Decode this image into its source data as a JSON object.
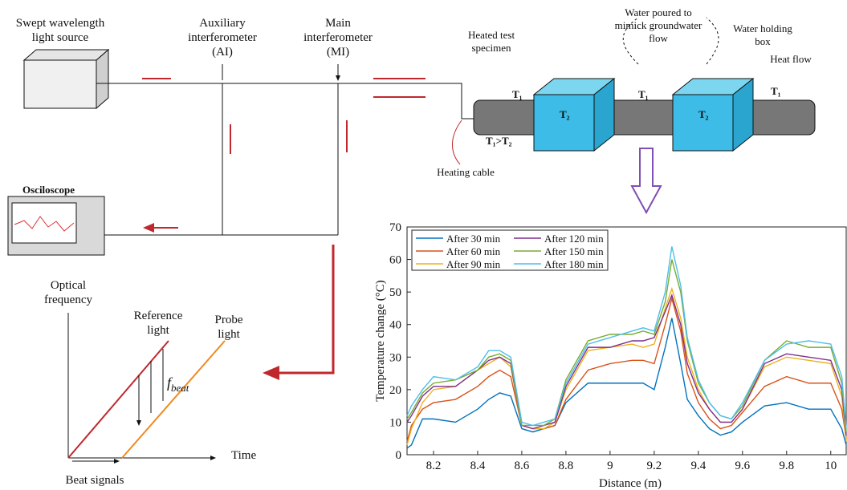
{
  "diagram": {
    "source": [
      "Swept wavelength",
      "light source"
    ],
    "ai": [
      "Auxiliary",
      "interferometer",
      "(AI)"
    ],
    "mi": [
      "Main",
      "interferometer",
      "(MI)"
    ],
    "specimen": [
      "Heated test",
      "specimen"
    ],
    "water": [
      "Water poured to",
      "mimick groundwater",
      "flow"
    ],
    "box": [
      "Water holding",
      "box"
    ],
    "heat_flow": "Heat flow",
    "heating_cable": "Heating cable",
    "t1": "T₁",
    "t2": "T₂",
    "t1_gt_t2": "T₁>T₂",
    "oscilloscope": "Osciloscope",
    "optical": [
      "Optical",
      "frequency"
    ],
    "reference": [
      "Reference",
      "light"
    ],
    "probe": [
      "Probe",
      "light"
    ],
    "fbeat": {
      "symbol": "f",
      "subscript": "beat"
    },
    "time": "Time",
    "beat_signals": "Beat signals"
  },
  "chart_data": {
    "type": "line",
    "x_label": "Distance (m)",
    "y_label": "Temperature change (°C)",
    "x": [
      8.08,
      8.1,
      8.15,
      8.2,
      8.3,
      8.4,
      8.45,
      8.5,
      8.55,
      8.6,
      8.65,
      8.7,
      8.75,
      8.8,
      8.9,
      9.0,
      9.1,
      9.15,
      9.2,
      9.25,
      9.28,
      9.32,
      9.35,
      9.4,
      9.45,
      9.5,
      9.55,
      9.6,
      9.7,
      9.8,
      9.9,
      10.0,
      10.05,
      10.07
    ],
    "series": [
      {
        "name": "After 30 min",
        "color": "#0072bd",
        "values": [
          2,
          3,
          11,
          11,
          10,
          14,
          17,
          19,
          18,
          8,
          7,
          8,
          9,
          16,
          22,
          22,
          22,
          22,
          20,
          33,
          42,
          28,
          17,
          12,
          8,
          6,
          7,
          10,
          15,
          16,
          14,
          14,
          8,
          3
        ]
      },
      {
        "name": "After 60 min",
        "color": "#d95319",
        "values": [
          4,
          9,
          14,
          16,
          17,
          21,
          24,
          26,
          24,
          9,
          8,
          8,
          9,
          17,
          26,
          28,
          29,
          29,
          28,
          40,
          48,
          38,
          25,
          16,
          11,
          8,
          9,
          13,
          21,
          24,
          22,
          22,
          14,
          5
        ]
      },
      {
        "name": "After 90 min",
        "color": "#edb120",
        "values": [
          3,
          8,
          16,
          20,
          21,
          26,
          28,
          30,
          27,
          9,
          8,
          8,
          10,
          20,
          32,
          33,
          34,
          33,
          34,
          45,
          51,
          42,
          30,
          20,
          14,
          10,
          10,
          14,
          27,
          30,
          29,
          28,
          18,
          4
        ]
      },
      {
        "name": "After 120 min",
        "color": "#7e2f8e",
        "values": [
          10,
          12,
          18,
          21,
          21,
          26,
          29,
          30,
          28,
          9,
          8,
          9,
          10,
          21,
          33,
          33,
          35,
          35,
          36,
          44,
          49,
          40,
          28,
          19,
          14,
          10,
          10,
          14,
          28,
          31,
          30,
          29,
          20,
          6
        ]
      },
      {
        "name": "After 150 min",
        "color": "#77ac30",
        "values": [
          11,
          13,
          19,
          22,
          23,
          26,
          30,
          31,
          29,
          9,
          9,
          9,
          11,
          23,
          35,
          37,
          37,
          38,
          37,
          47,
          60,
          50,
          35,
          22,
          16,
          12,
          11,
          15,
          29,
          35,
          33,
          33,
          22,
          7
        ]
      },
      {
        "name": "After 180 min",
        "color": "#4dbeee",
        "values": [
          12,
          15,
          20,
          24,
          23,
          27,
          32,
          32,
          30,
          10,
          9,
          10,
          11,
          22,
          34,
          36,
          38,
          39,
          38,
          50,
          64,
          52,
          36,
          23,
          16,
          12,
          11,
          16,
          29,
          34,
          35,
          34,
          24,
          8
        ]
      }
    ],
    "xlim": [
      8.08,
      10.07
    ],
    "ylim": [
      0,
      70
    ],
    "xticks": [
      8.2,
      8.4,
      8.6,
      8.8,
      9,
      9.2,
      9.4,
      9.6,
      9.8,
      10
    ],
    "yticks": [
      0,
      10,
      20,
      30,
      40,
      50,
      60,
      70
    ],
    "legend": "top-left"
  }
}
